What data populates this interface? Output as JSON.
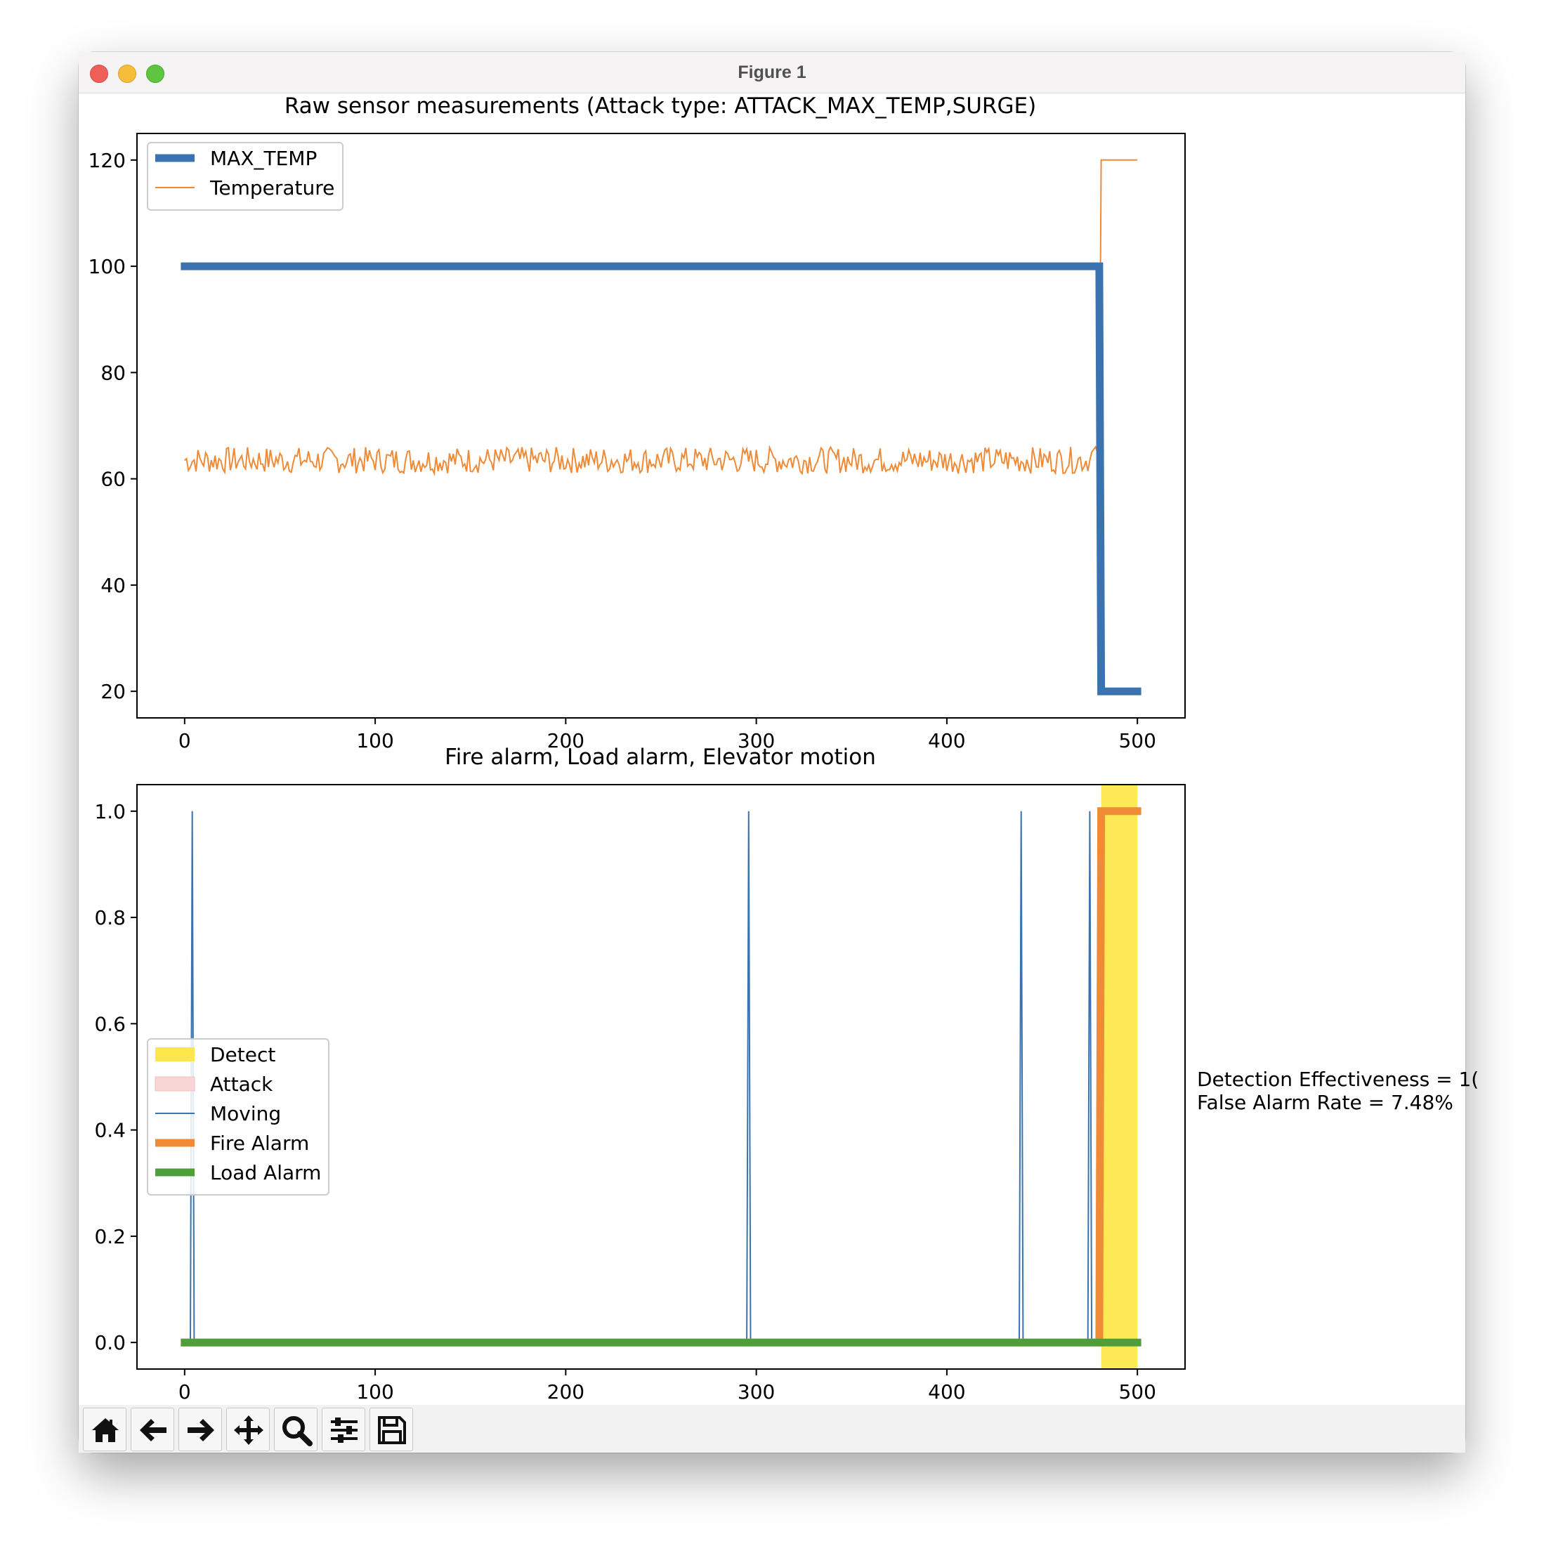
{
  "window": {
    "title": "Figure 1"
  },
  "colors": {
    "max_temp": "#3a73b0",
    "temperature": "#ef8a36",
    "detect": "#fde74c",
    "attack": "#f9d6d6",
    "moving": "#3a73b0",
    "fire_alarm": "#ef8a36",
    "load_alarm": "#4f9e3c"
  },
  "toolbar": {
    "buttons": [
      {
        "name": "home-button",
        "icon": "home-icon"
      },
      {
        "name": "back-button",
        "icon": "arrow-left-icon"
      },
      {
        "name": "forward-button",
        "icon": "arrow-right-icon"
      },
      {
        "name": "pan-button",
        "icon": "move-icon"
      },
      {
        "name": "zoom-button",
        "icon": "magnifier-icon"
      },
      {
        "name": "configure-subplots-button",
        "icon": "sliders-icon"
      },
      {
        "name": "save-button",
        "icon": "floppy-disk-icon"
      }
    ]
  },
  "annotation": {
    "line1": "Detection Effectiveness = 1(",
    "line2": "False Alarm Rate = 7.48%"
  },
  "chart_data": [
    {
      "type": "line",
      "title": "Raw sensor measurements (Attack type: ATTACK_MAX_TEMP,SURGE)",
      "xlabel": "",
      "ylabel": "",
      "xlim": [
        -25,
        525
      ],
      "ylim": [
        15,
        125
      ],
      "xticks": [
        0,
        100,
        200,
        300,
        400,
        500
      ],
      "xtick_labels": [
        "0",
        "100",
        "200",
        "300",
        "400",
        "500"
      ],
      "yticks": [
        20,
        40,
        60,
        80,
        100,
        120
      ],
      "ytick_labels": [
        "20",
        "40",
        "60",
        "80",
        "100",
        "120"
      ],
      "legend": {
        "placement": "upper-left",
        "entries": [
          "MAX_TEMP",
          "Temperature"
        ]
      },
      "series": [
        {
          "name": "MAX_TEMP",
          "points": [
            [
              -2,
              100
            ],
            [
              478,
              100
            ],
            [
              479,
              100
            ],
            [
              480,
              100
            ],
            [
              481,
              20
            ],
            [
              502,
              20
            ]
          ]
        },
        {
          "name": "Temperature",
          "noisy_range": {
            "x_start": 0,
            "x_end": 475,
            "min": 61,
            "max": 66
          },
          "points": [
            [
              476,
              65
            ],
            [
              478,
              66
            ],
            [
              479,
              65
            ],
            [
              480,
              64
            ],
            [
              481,
              120
            ],
            [
              500,
              120
            ]
          ]
        }
      ]
    },
    {
      "type": "line",
      "title": "Fire alarm, Load alarm, Elevator motion",
      "xlabel": "",
      "ylabel": "",
      "xlim": [
        -25,
        525
      ],
      "ylim": [
        -0.05,
        1.05
      ],
      "xticks": [
        0,
        100,
        200,
        300,
        400,
        500
      ],
      "xtick_labels": [
        "0",
        "100",
        "200",
        "300",
        "400",
        "500"
      ],
      "yticks": [
        0.0,
        0.2,
        0.4,
        0.6,
        0.8,
        1.0
      ],
      "ytick_labels": [
        "0.0",
        "0.2",
        "0.4",
        "0.6",
        "0.8",
        "1.0"
      ],
      "legend": {
        "placement": "center-left",
        "entries": [
          "Detect",
          "Attack",
          "Moving",
          "Fire Alarm",
          "Load Alarm"
        ]
      },
      "detect_span": [
        481,
        500
      ],
      "series": [
        {
          "name": "Moving",
          "spikes": [
            4,
            296,
            439,
            475
          ]
        },
        {
          "name": "Fire Alarm",
          "points": [
            [
              -2,
              0
            ],
            [
              480,
              0
            ],
            [
              481,
              1
            ],
            [
              502,
              1
            ]
          ]
        },
        {
          "name": "Load Alarm",
          "points": [
            [
              -2,
              0
            ],
            [
              502,
              0
            ]
          ]
        }
      ]
    }
  ]
}
